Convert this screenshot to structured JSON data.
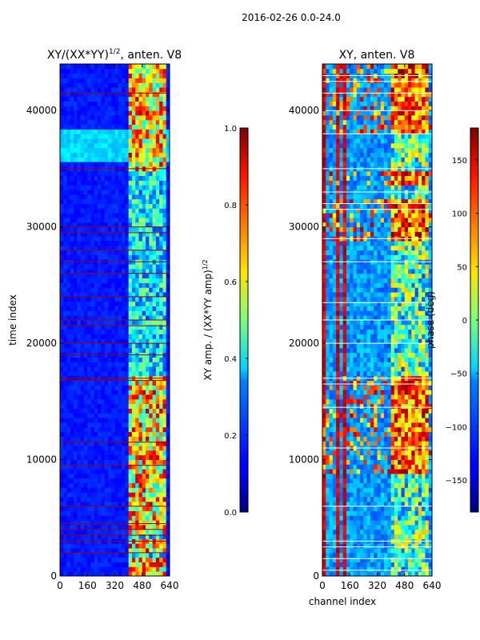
{
  "figure": {
    "suptitle": "2016-02-26 0.0-24.0"
  },
  "chart_data": [
    {
      "type": "heatmap",
      "title": "XY/(XX*YY)^1/2, anten. V8",
      "title_main": "XY/(XX*YY)",
      "title_exp": "1/2",
      "title_rest": ", anten. V8",
      "ylabel": "time index",
      "xlabel": "",
      "xlim": [
        0,
        640
      ],
      "ylim": [
        0,
        44000
      ],
      "xticks": [
        0,
        160,
        320,
        480,
        640
      ],
      "yticks": [
        0,
        10000,
        20000,
        30000,
        40000
      ],
      "colorbar": {
        "label_main": "XY amp. / (XX*YY amp)",
        "label_exp": "1/2",
        "range": [
          0.0,
          1.0
        ],
        "ticks": [
          "0.0",
          "0.2",
          "0.4",
          "0.6",
          "0.8",
          "1.0"
        ]
      },
      "structure": {
        "bright_band_channels": [
          400,
          610
        ],
        "bright_rows": [
          [
            0,
            1500
          ],
          [
            1900,
            3300
          ],
          [
            3500,
            17000
          ],
          [
            35000,
            44000
          ]
        ],
        "mid_level_rows": [
          [
            35500,
            38500
          ]
        ],
        "flagged_rows": [
          2000,
          3000,
          3500,
          4000,
          4500,
          6000,
          9500,
          11500,
          16800,
          17000,
          19000,
          20000,
          21500,
          22000,
          24000,
          26000,
          27000,
          28000,
          29500,
          30000,
          35000,
          41500
        ]
      }
    },
    {
      "type": "heatmap",
      "title": "XY, anten. V8",
      "ylabel": "",
      "xlabel": "channel index",
      "xlim": [
        0,
        640
      ],
      "ylim": [
        0,
        44000
      ],
      "xticks": [
        0,
        160,
        320,
        480,
        640
      ],
      "yticks": [
        0,
        10000,
        20000,
        30000,
        40000
      ],
      "colorbar": {
        "label": "phase (deg)",
        "range": [
          -180,
          180
        ],
        "ticks": [
          "150",
          "100",
          "50",
          "0",
          "−50",
          "−100",
          "−150"
        ]
      },
      "structure": {
        "bright_band_channels": [
          400,
          620
        ],
        "red_columns": [
          [
            0,
            20
          ],
          [
            80,
            95
          ],
          [
            130,
            145
          ]
        ],
        "saturated_rows": [
          [
            9000,
            17000
          ],
          [
            29000,
            32500
          ],
          [
            33500,
            34800
          ],
          [
            38000,
            44000
          ]
        ],
        "flagged_rows": [
          500,
          1500,
          2500,
          3000,
          6000,
          11000,
          14500,
          16500,
          17000,
          20000,
          22000,
          23500,
          27000,
          29000,
          31500,
          32000,
          33000,
          35000,
          38000,
          40000,
          41500,
          42500,
          43000
        ]
      }
    }
  ]
}
